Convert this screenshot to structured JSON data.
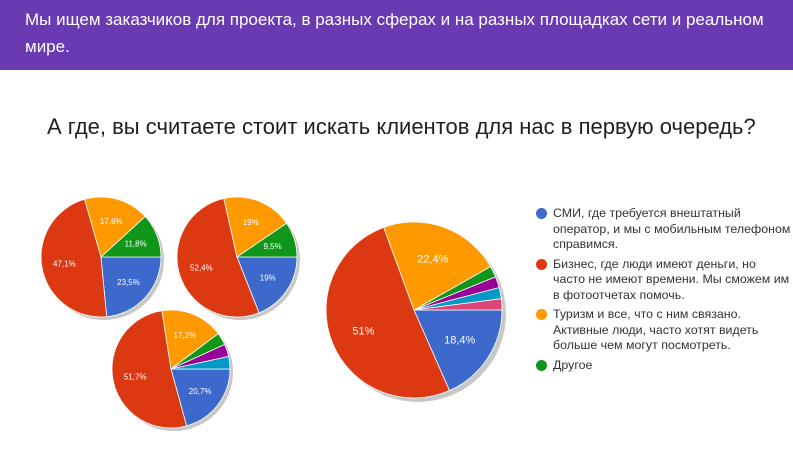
{
  "header": {
    "banner_text": "Мы ищем заказчиков для проекта, в разных сферах и на разных площадках сети и реальном мире.",
    "question": "А где, вы считаете стоит искать клиентов для нас в первую очередь?"
  },
  "colors": {
    "banner": "#6a3ab2",
    "blue": "#3d68cc",
    "red": "#dc3912",
    "orange": "#ff9900",
    "green": "#109618",
    "purple": "#990099",
    "teal": "#0099c6",
    "pink": "#dd4477"
  },
  "chart_data": [
    {
      "type": "pie",
      "slices": [
        {
          "value": 23.5,
          "label": "23,5%",
          "color": "#3d68cc"
        },
        {
          "value": 47.1,
          "label": "47,1%",
          "color": "#dc3912"
        },
        {
          "value": 17.6,
          "label": "17,6%",
          "color": "#ff9900"
        },
        {
          "value": 11.8,
          "label": "11,8%",
          "color": "#109618"
        }
      ]
    },
    {
      "type": "pie",
      "slices": [
        {
          "value": 19,
          "label": "19%",
          "color": "#3d68cc"
        },
        {
          "value": 52.4,
          "label": "52,4%",
          "color": "#dc3912"
        },
        {
          "value": 19,
          "label": "19%",
          "color": "#ff9900"
        },
        {
          "value": 9.5,
          "label": "9,5%",
          "color": "#109618"
        }
      ]
    },
    {
      "type": "pie",
      "slices": [
        {
          "value": 20.7,
          "label": "20,7%",
          "color": "#3d68cc"
        },
        {
          "value": 51.7,
          "label": "51,7%",
          "color": "#dc3912"
        },
        {
          "value": 17.2,
          "label": "17,2%",
          "color": "#ff9900"
        },
        {
          "value": 3.4,
          "label": "",
          "color": "#109618"
        },
        {
          "value": 3.4,
          "label": "",
          "color": "#990099"
        },
        {
          "value": 3.4,
          "label": "",
          "color": "#0099c6"
        }
      ]
    },
    {
      "type": "pie",
      "slices": [
        {
          "value": 18.4,
          "label": "18,4%",
          "color": "#3d68cc"
        },
        {
          "value": 51,
          "label": "51%",
          "color": "#dc3912"
        },
        {
          "value": 22.4,
          "label": "22,4%",
          "color": "#ff9900"
        },
        {
          "value": 2.05,
          "label": "",
          "color": "#109618"
        },
        {
          "value": 2.05,
          "label": "",
          "color": "#990099"
        },
        {
          "value": 2.05,
          "label": "",
          "color": "#0099c6"
        },
        {
          "value": 2.05,
          "label": "",
          "color": "#dd4477"
        }
      ],
      "legend_position": "right",
      "legend": [
        {
          "label": "СМИ, где требуется внештатный оператор, и мы с мобильным телефоном справимся.",
          "color": "#3d68cc"
        },
        {
          "label": "Бизнес, где люди имеют деньги, но часто не имеют времени. Мы сможем им в фотоотчетах помочь.",
          "color": "#dc3912"
        },
        {
          "label": "Туризм и все, что с ним связано. Активные люди, часто хотят видеть больше чем могут посмотреть.",
          "color": "#ff9900"
        },
        {
          "label": "Другое",
          "color": "#109618"
        }
      ]
    }
  ]
}
